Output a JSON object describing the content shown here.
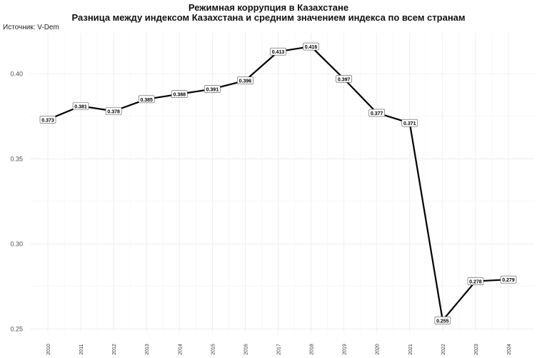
{
  "chart_data": {
    "type": "line",
    "title": "Режимная коррупция в Казахстане",
    "subtitle": "Разница между индексом Казахстана и средним значением индекса по всем странам",
    "source": "Источник: V-Dem",
    "xlabel": "",
    "ylabel": "",
    "x": [
      "2010",
      "2011",
      "2012",
      "2013",
      "2014",
      "2015",
      "2016",
      "2017",
      "2018",
      "2019",
      "2020",
      "2021",
      "2022",
      "2023",
      "2024"
    ],
    "series": [
      {
        "values": [
          0.373,
          0.381,
          0.378,
          0.385,
          0.388,
          0.391,
          0.396,
          0.413,
          0.416,
          0.397,
          0.377,
          0.371,
          0.255,
          0.278,
          0.279
        ]
      }
    ],
    "data_labels": [
      "0.373",
      "0.381",
      "0.378",
      "0.385",
      "0.388",
      "0.391",
      "0.396",
      "0.413",
      "0.416",
      "0.397",
      "0.377",
      "0.371",
      "0.255",
      "0.278",
      "0.279"
    ],
    "yticks": [
      0.25,
      0.3,
      0.35,
      0.4
    ],
    "ytick_labels": [
      "0.25",
      "0.30",
      "0.35",
      "0.40"
    ],
    "ylim": [
      0.248,
      0.424
    ],
    "grid": true,
    "line_color": "#000000"
  }
}
